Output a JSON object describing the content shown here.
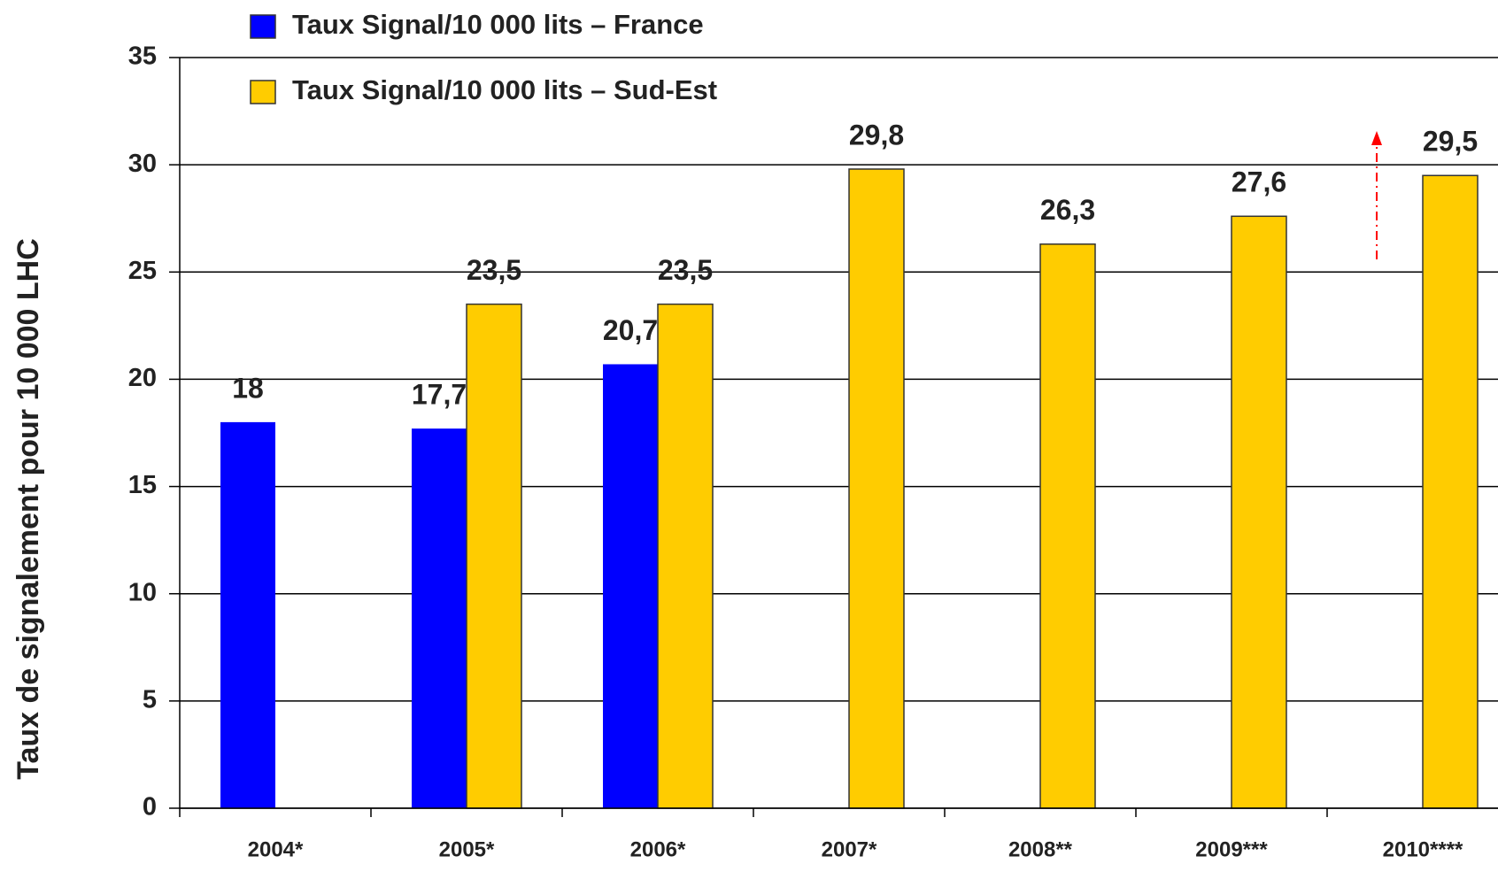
{
  "chart_data": {
    "type": "bar",
    "y_label": "Taux de signalement pour 10 000 LHC",
    "categories": [
      "2004*",
      "2005*",
      "2006*",
      "2007*",
      "2008**",
      "2009***",
      "2010****"
    ],
    "series": [
      {
        "name": "Taux Signal/10 000 lits – France",
        "color": "#0000ff",
        "values": [
          18,
          17.7,
          20.7,
          null,
          null,
          null,
          null
        ],
        "value_labels": [
          "18",
          "17,7",
          "20,7",
          null,
          null,
          null,
          null
        ]
      },
      {
        "name": "Taux Signal/10 000 lits – Sud-Est",
        "color": "#ffcc00",
        "values": [
          null,
          23.5,
          23.5,
          29.8,
          26.3,
          27.6,
          29.5
        ],
        "value_labels": [
          null,
          "23,5",
          "23,5",
          "29,8",
          "26,3",
          "27,6",
          "29,5"
        ]
      }
    ],
    "ylim": [
      0,
      35
    ],
    "yticks": [
      0,
      5,
      10,
      15,
      20,
      25,
      30,
      35
    ],
    "grid": true,
    "legend": "top-left"
  }
}
